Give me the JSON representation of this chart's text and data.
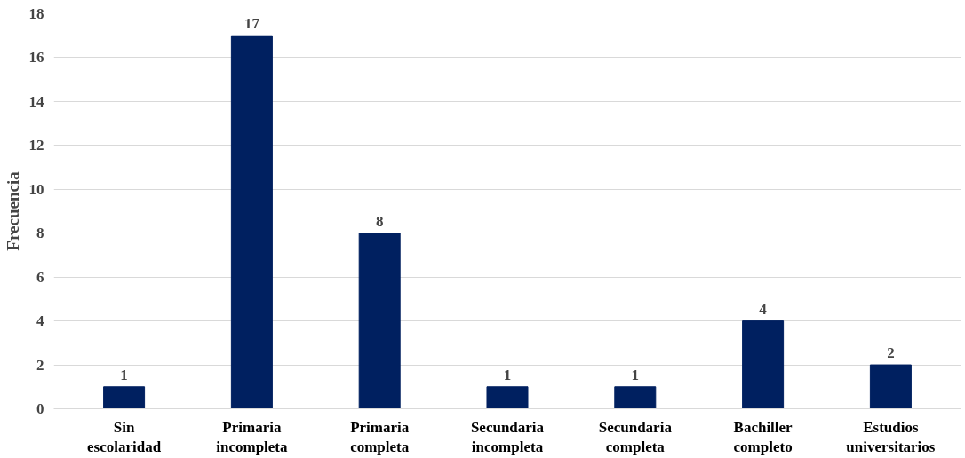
{
  "chart_data": {
    "type": "bar",
    "ylabel": "Frecuencia",
    "categories": [
      "Sin\nescolaridad",
      "Primaria\nincompleta",
      "Primaria\ncompleta",
      "Secundaria\nincompleta",
      "Secundaria\ncompleta",
      "Bachiller\ncompleto",
      "Estudios\nuniversitarios"
    ],
    "values": [
      1,
      17,
      8,
      1,
      1,
      4,
      2
    ],
    "color": "#002060",
    "ylim": [
      0,
      18
    ],
    "yticks": [
      0,
      2,
      4,
      6,
      8,
      10,
      12,
      14,
      16,
      18
    ],
    "grid": "y",
    "data_labels": true
  }
}
